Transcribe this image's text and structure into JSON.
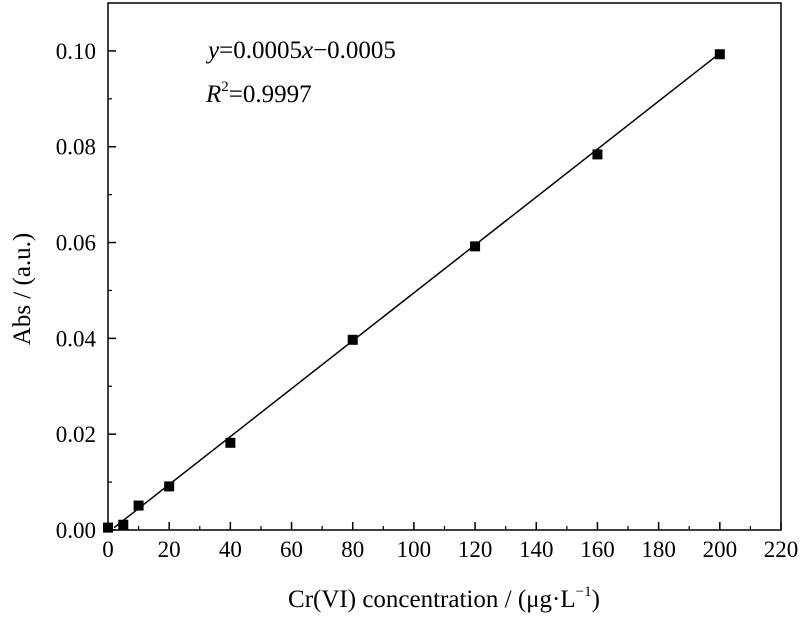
{
  "chart_data": {
    "type": "scatter",
    "xlabel": "Cr(VI) concentration / (μg·L",
    "xlabel_sup": "−1",
    "xlabel_close": ")",
    "ylabel": "Abs / (a.u.)",
    "xlim": [
      0,
      220
    ],
    "ylim": [
      0,
      0.11
    ],
    "xticks": [
      0,
      20,
      40,
      60,
      80,
      100,
      120,
      140,
      160,
      180,
      200,
      220
    ],
    "xtick_labels": [
      "0",
      "20",
      "40",
      "60",
      "80",
      "100",
      "120",
      "140",
      "160",
      "180",
      "200",
      "220"
    ],
    "yticks": [
      0.0,
      0.02,
      0.04,
      0.06,
      0.08,
      0.1
    ],
    "ytick_labels": [
      "0.00",
      "0.02",
      "0.04",
      "0.06",
      "0.08",
      "0.10"
    ],
    "grid": false,
    "series": [
      {
        "x": [
          0,
          5,
          10,
          20,
          40,
          80,
          120,
          160,
          200
        ],
        "y": [
          0.0005,
          0.0011,
          0.0051,
          0.0091,
          0.0182,
          0.0397,
          0.0592,
          0.0784,
          0.0993
        ],
        "marker": "square",
        "color": "#000000"
      }
    ],
    "fit": {
      "slope": 0.0005,
      "intercept": -0.0005,
      "x_range": [
        2,
        200
      ],
      "equation": {
        "y": "y",
        "mid": "=0.0005",
        "x": "x",
        "rest": "−0.0005"
      },
      "r2": {
        "R": "R",
        "sup": "2",
        "rest": "=0.9997"
      }
    }
  }
}
